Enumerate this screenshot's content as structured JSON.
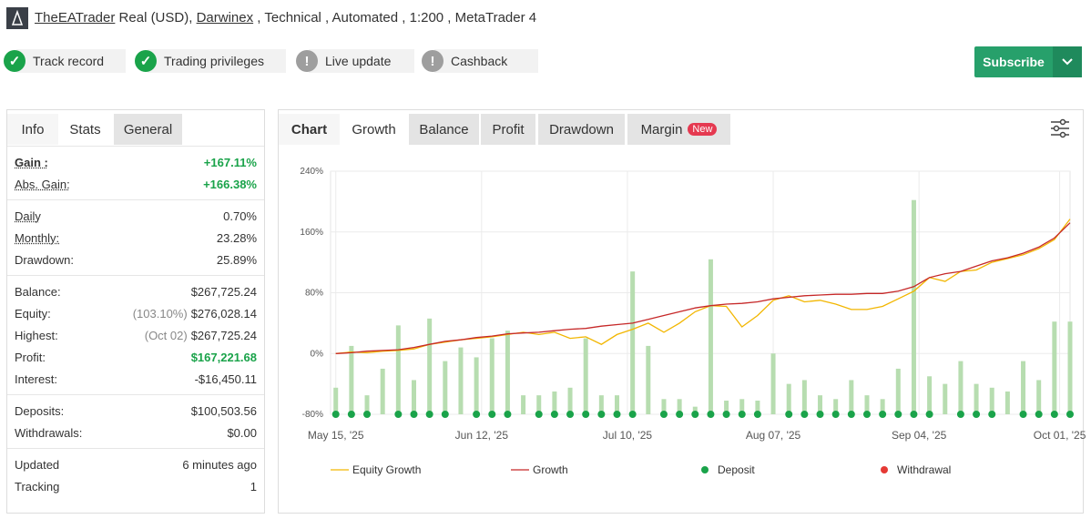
{
  "header": {
    "trader": "TheEATrader",
    "account": "Real (USD),",
    "broker": "Darwinex",
    "details": ", Technical , Automated , 1:200 , MetaTrader 4"
  },
  "badges": [
    {
      "label": "Track record",
      "color": "#1aa34a"
    },
    {
      "label": "Trading privileges",
      "color": "#1aa34a"
    },
    {
      "label": "Live update",
      "color": "#9e9e9e"
    },
    {
      "label": "Cashback",
      "color": "#9e9e9e"
    }
  ],
  "subscribe": "Subscribe",
  "stats_tabs": [
    "Info",
    "Stats",
    "General"
  ],
  "stats": {
    "groups": [
      {
        "rows": [
          {
            "label": "Gain :",
            "value": "+167.11%",
            "color": "#1aa34a"
          },
          {
            "label": "Abs. Gain:",
            "value": "+166.38%",
            "color": "#1aa34a"
          }
        ]
      },
      {
        "rows": [
          {
            "label": "Daily",
            "value": "0.70%"
          },
          {
            "label": "Monthly:",
            "value": "23.28%"
          },
          {
            "label": "Drawdown:",
            "value": "25.89%"
          }
        ]
      },
      {
        "rows": [
          {
            "label": "Balance:",
            "value": "$267,725.24"
          },
          {
            "label": "Equity:",
            "note": "(103.10%)",
            "value": "$276,028.14"
          },
          {
            "label": "Highest:",
            "note": "(Oct 02)",
            "value": "$267,725.24"
          },
          {
            "label": "Profit:",
            "value": "$167,221.68",
            "color": "#1aa34a"
          },
          {
            "label": "Interest:",
            "value": "-$16,450.11"
          }
        ]
      },
      {
        "rows": [
          {
            "label": "Deposits:",
            "value": "$100,503.56"
          },
          {
            "label": "Withdrawals:",
            "value": "$0.00"
          }
        ]
      },
      {
        "rows": [
          {
            "label": "Updated",
            "value": "6 minutes ago"
          },
          {
            "label": "Tracking",
            "value": "1"
          }
        ]
      }
    ]
  },
  "chart_tabs": [
    "Chart",
    "Growth",
    "Balance",
    "Profit",
    "Drawdown",
    "Margin"
  ],
  "new_badge": "New",
  "chart_data": {
    "type": "combo",
    "grid": true,
    "xlim": [
      "2025-05-14",
      "2025-10-03"
    ],
    "xticks": [
      {
        "value": "2025-05-15",
        "label": "May 15, '25"
      },
      {
        "value": "2025-06-12",
        "label": "Jun 12, '25"
      },
      {
        "value": "2025-07-10",
        "label": "Jul 10, '25"
      },
      {
        "value": "2025-08-07",
        "label": "Aug 07, '25"
      },
      {
        "value": "2025-09-04",
        "label": "Sep 04, '25"
      },
      {
        "value": "2025-10-01",
        "label": "Oct 01, '25"
      }
    ],
    "ylim": [
      -80,
      240
    ],
    "yticks": [
      {
        "value": -80,
        "label": "-80%"
      },
      {
        "value": 0,
        "label": "0%"
      },
      {
        "value": 80,
        "label": "80%"
      },
      {
        "value": 160,
        "label": "160%"
      },
      {
        "value": 240,
        "label": "240%"
      }
    ],
    "x": [
      "2025-05-15",
      "2025-05-18",
      "2025-05-21",
      "2025-05-24",
      "2025-05-27",
      "2025-05-30",
      "2025-06-02",
      "2025-06-05",
      "2025-06-08",
      "2025-06-11",
      "2025-06-14",
      "2025-06-17",
      "2025-06-20",
      "2025-06-23",
      "2025-06-26",
      "2025-06-29",
      "2025-07-02",
      "2025-07-05",
      "2025-07-08",
      "2025-07-11",
      "2025-07-14",
      "2025-07-17",
      "2025-07-20",
      "2025-07-23",
      "2025-07-26",
      "2025-07-29",
      "2025-08-01",
      "2025-08-04",
      "2025-08-07",
      "2025-08-10",
      "2025-08-13",
      "2025-08-16",
      "2025-08-19",
      "2025-08-22",
      "2025-08-25",
      "2025-08-28",
      "2025-08-31",
      "2025-09-03",
      "2025-09-06",
      "2025-09-09",
      "2025-09-12",
      "2025-09-15",
      "2025-09-18",
      "2025-09-21",
      "2025-09-24",
      "2025-09-27",
      "2025-09-30",
      "2025-10-03"
    ],
    "bars": {
      "color": "#b7ddb0",
      "values": [
        -45,
        10,
        -55,
        -20,
        37,
        -35,
        46,
        -10,
        8,
        -5,
        20,
        30,
        -55,
        -55,
        -50,
        -45,
        20,
        -55,
        -55,
        108,
        10,
        -60,
        -60,
        -70,
        124,
        -62,
        -60,
        -62,
        0,
        -40,
        -35,
        -55,
        -60,
        -35,
        -55,
        -60,
        -20,
        202,
        -30,
        -40,
        -10,
        -40,
        -45,
        -50,
        -10,
        -35,
        42,
        42
      ]
    },
    "series": [
      {
        "name": "Equity Growth",
        "kind": "line",
        "color": "#f2b600",
        "values": [
          0,
          2,
          1,
          3,
          4,
          6,
          12,
          15,
          18,
          20,
          22,
          25,
          28,
          25,
          28,
          20,
          22,
          12,
          25,
          32,
          40,
          28,
          40,
          55,
          63,
          62,
          35,
          50,
          70,
          76,
          68,
          70,
          65,
          58,
          58,
          62,
          72,
          82,
          100,
          95,
          108,
          110,
          120,
          125,
          130,
          138,
          150,
          177
        ]
      },
      {
        "name": "Growth",
        "kind": "line",
        "color": "#c62828",
        "values": [
          0,
          1,
          3,
          4,
          5,
          8,
          12,
          16,
          18,
          21,
          23,
          26,
          27,
          28,
          30,
          32,
          33,
          36,
          38,
          40,
          45,
          50,
          55,
          60,
          63,
          65,
          66,
          68,
          72,
          74,
          76,
          77,
          78,
          78,
          79,
          79,
          82,
          88,
          100,
          105,
          108,
          115,
          122,
          126,
          132,
          140,
          152,
          172
        ]
      },
      {
        "name": "Deposit",
        "kind": "dot",
        "color": "#1aa34a",
        "values": [
          -80,
          -80,
          -80,
          null,
          -80,
          -80,
          -80,
          -80,
          null,
          -80,
          -80,
          -80,
          null,
          -80,
          -80,
          -80,
          -80,
          -80,
          -80,
          -80,
          null,
          -80,
          -80,
          -80,
          -80,
          -80,
          -80,
          -80,
          null,
          -80,
          -80,
          -80,
          -80,
          -80,
          -80,
          -80,
          -80,
          -80,
          -80,
          null,
          -80,
          -80,
          -80,
          null,
          -80,
          -80,
          -80,
          -80
        ]
      },
      {
        "name": "Withdrawal",
        "kind": "dot",
        "color": "#e53935",
        "values": [
          null,
          null,
          null,
          null,
          null,
          null,
          null,
          null,
          null,
          null,
          null,
          null,
          null,
          null,
          null,
          null,
          null,
          null,
          null,
          null,
          null,
          null,
          null,
          null,
          null,
          null,
          null,
          null,
          null,
          null,
          null,
          null,
          null,
          null,
          null,
          null,
          null,
          null,
          null,
          null,
          null,
          null,
          null,
          null,
          null,
          null,
          null,
          null
        ]
      }
    ]
  }
}
